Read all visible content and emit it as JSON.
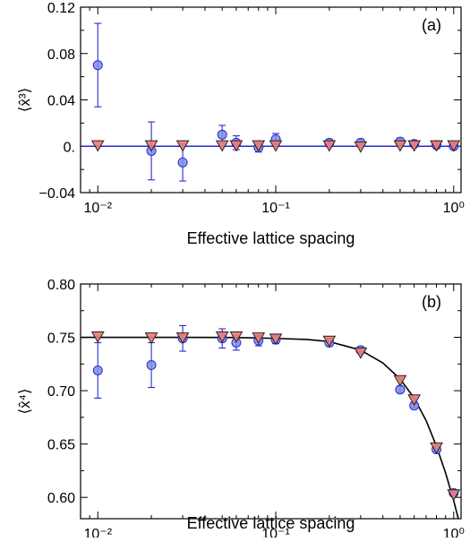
{
  "chart_data": [
    {
      "type": "scatter",
      "panel_label": "(a)",
      "xlabel": "Effective lattice spacing",
      "ylabel": "⟨x̂³⟩",
      "xscale": "log",
      "xlim": [
        0.008,
        1.1
      ],
      "ylim": [
        -0.04,
        0.12
      ],
      "xticks": [
        0.01,
        0.1,
        1
      ],
      "xtick_labels": [
        "10⁻²",
        "10⁻¹",
        "10⁰"
      ],
      "yticks": [
        -0.04,
        0,
        0.04,
        0.08,
        0.12
      ],
      "ytick_labels": [
        "−0.04",
        "0.",
        "0.04",
        "0.08",
        "0.12"
      ],
      "grid": false,
      "series": [
        {
          "marker": "circle",
          "color": "#7b8fe6",
          "stroke": "#2b2bd0",
          "x": [
            0.01,
            0.02,
            0.03,
            0.05,
            0.06,
            0.08,
            0.1,
            0.2,
            0.3,
            0.5,
            0.6,
            0.8,
            1.0
          ],
          "y": [
            0.07,
            -0.004,
            -0.014,
            0.01,
            0.003,
            -0.001,
            0.006,
            0.003,
            0.003,
            0.004,
            0.002,
            0.001,
            0.0
          ],
          "err": [
            0.036,
            0.025,
            0.016,
            0.008,
            0.006,
            0.004,
            0.005,
            0.003,
            0.003,
            0.003,
            0.002,
            0.002,
            0.002
          ]
        },
        {
          "marker": "triangle-down",
          "color": "#f07a74",
          "stroke": "#222222",
          "x": [
            0.01,
            0.02,
            0.03,
            0.05,
            0.06,
            0.08,
            0.1,
            0.2,
            0.3,
            0.5,
            0.6,
            0.8,
            1.0
          ],
          "y": [
            0.001,
            0.001,
            0.001,
            0.001,
            0.001,
            0.001,
            0.001,
            0.001,
            0.0,
            0.001,
            0.001,
            0.001,
            0.001
          ]
        },
        {
          "type": "line",
          "color": "#2b2bd0",
          "x": [
            0.008,
            1.1
          ],
          "y": [
            0.0,
            0.0
          ]
        }
      ]
    },
    {
      "type": "scatter",
      "panel_label": "(b)",
      "xlabel": "Effective lattice spacing",
      "ylabel": "⟨x̂⁴⟩",
      "xscale": "log",
      "xlim": [
        0.008,
        1.1
      ],
      "ylim": [
        0.58,
        0.8
      ],
      "xticks": [
        0.01,
        0.1,
        1
      ],
      "xtick_labels": [
        "10⁻²",
        "10⁻¹",
        "10⁰"
      ],
      "yticks": [
        0.6,
        0.65,
        0.7,
        0.75,
        0.8
      ],
      "ytick_labels": [
        "0.60",
        "0.65",
        "0.70",
        "0.75",
        "0.80"
      ],
      "grid": false,
      "series": [
        {
          "marker": "circle",
          "color": "#7b8fe6",
          "stroke": "#2b2bd0",
          "x": [
            0.01,
            0.02,
            0.03,
            0.05,
            0.06,
            0.08,
            0.1,
            0.2,
            0.3,
            0.5,
            0.6,
            0.8,
            1.0
          ],
          "y": [
            0.719,
            0.724,
            0.749,
            0.749,
            0.745,
            0.747,
            0.748,
            0.745,
            0.738,
            0.701,
            0.686,
            0.645,
            0.604
          ],
          "err": [
            0.026,
            0.021,
            0.012,
            0.009,
            0.007,
            0.005,
            0.004,
            0.003,
            0.003,
            0.003,
            0.002,
            0.002,
            0.002
          ]
        },
        {
          "marker": "triangle-down",
          "color": "#f07a74",
          "stroke": "#222222",
          "x": [
            0.01,
            0.02,
            0.03,
            0.05,
            0.06,
            0.08,
            0.1,
            0.2,
            0.3,
            0.5,
            0.6,
            0.8,
            1.0
          ],
          "y": [
            0.751,
            0.75,
            0.75,
            0.751,
            0.751,
            0.75,
            0.749,
            0.747,
            0.736,
            0.71,
            0.692,
            0.647,
            0.603
          ]
        },
        {
          "type": "line",
          "color": "#000000",
          "x": [
            0.008,
            0.01,
            0.02,
            0.03,
            0.05,
            0.08,
            0.1,
            0.15,
            0.2,
            0.3,
            0.4,
            0.5,
            0.6,
            0.7,
            0.8,
            0.9,
            1.0,
            1.1
          ],
          "y": [
            0.75,
            0.75,
            0.75,
            0.75,
            0.7499,
            0.7495,
            0.749,
            0.748,
            0.746,
            0.738,
            0.726,
            0.711,
            0.693,
            0.672,
            0.648,
            0.623,
            0.597,
            0.57
          ]
        }
      ]
    }
  ]
}
